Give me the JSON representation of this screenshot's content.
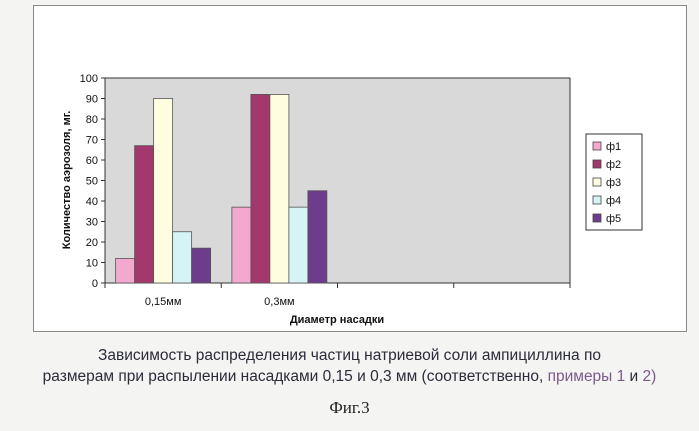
{
  "chart_data": {
    "type": "bar",
    "categories": [
      "0,15мм",
      "0,3мм",
      "",
      ""
    ],
    "series": [
      {
        "name": "ф1",
        "values": [
          12,
          37,
          null,
          null
        ],
        "color": "#f3a8cf"
      },
      {
        "name": "ф2",
        "values": [
          67,
          92,
          null,
          null
        ],
        "color": "#a3386c"
      },
      {
        "name": "ф3",
        "values": [
          90,
          92,
          null,
          null
        ],
        "color": "#fffde0"
      },
      {
        "name": "ф4",
        "values": [
          25,
          37,
          null,
          null
        ],
        "color": "#d6f3f6"
      },
      {
        "name": "ф5",
        "values": [
          17,
          45,
          null,
          null
        ],
        "color": "#6d3d8c"
      }
    ],
    "title": "",
    "xlabel": "Диаметр насадки",
    "ylabel": "Количество аэрозоля, мг.",
    "ylim": [
      0,
      100
    ],
    "yticks": [
      0,
      10,
      20,
      30,
      40,
      50,
      60,
      70,
      80,
      90,
      100
    ],
    "grid": false,
    "legend_position": "right"
  },
  "caption": {
    "line1": "Зависимость распределения частиц натриевой соли ампициллина по",
    "line2_a": "размерам при распылении насадками 0,15 и 0,3 мм (соответственно, ",
    "line2_b": "примеры 1",
    "line2_c": " и ",
    "line2_d": "2)"
  },
  "figure_label": "Фиг.3"
}
